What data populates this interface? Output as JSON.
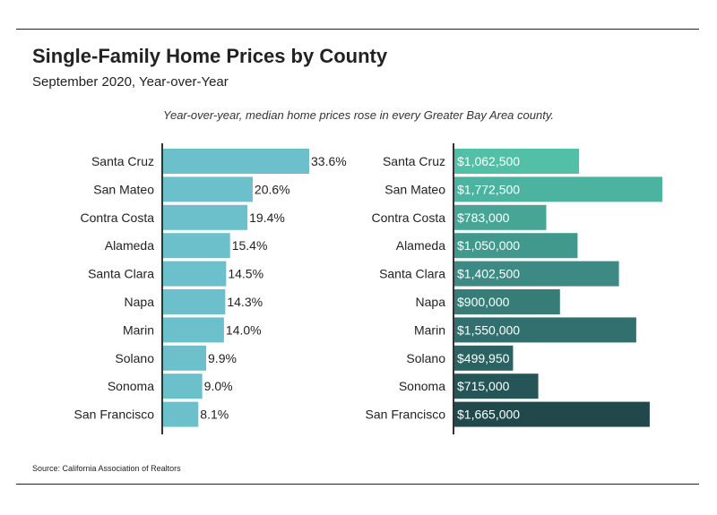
{
  "header": {
    "title": "Single-Family Home Prices by County",
    "subtitle": "September 2020, Year-over-Year",
    "note": "Year-over-year, median home prices rose in every Greater Bay Area county."
  },
  "footer": {
    "source": "Source:  California Association of Realtors"
  },
  "chart_data": [
    {
      "type": "bar",
      "orientation": "horizontal",
      "categories": [
        "Santa Cruz",
        "San Mateo",
        "Contra Costa",
        "Alameda",
        "Santa Clara",
        "Napa",
        "Marin",
        "Solano",
        "Sonoma",
        "San Francisco"
      ],
      "values": [
        33.6,
        20.6,
        19.4,
        15.4,
        14.5,
        14.3,
        14.0,
        9.9,
        9.0,
        8.1
      ],
      "labels": [
        "33.6%",
        "20.6%",
        "19.4%",
        "15.4%",
        "14.5%",
        "14.3%",
        "14.0%",
        "9.9%",
        "9.0%",
        "8.1%"
      ],
      "xlim": [
        0,
        33.6
      ],
      "grid": false,
      "color": "#6cc0cc"
    },
    {
      "type": "bar",
      "orientation": "horizontal",
      "categories": [
        "Santa Cruz",
        "San Mateo",
        "Contra Costa",
        "Alameda",
        "Santa Clara",
        "Napa",
        "Marin",
        "Solano",
        "Sonoma",
        "San Francisco"
      ],
      "values": [
        1062500,
        1772500,
        783000,
        1050000,
        1402500,
        900000,
        1550000,
        499950,
        715000,
        1665000
      ],
      "labels": [
        "$1,062,500",
        "$1,772,500",
        "$783,000",
        "$1,050,000",
        "$1,402,500",
        "$900,000",
        "$1,550,000",
        "$499,950",
        "$715,000",
        "$1,665,000"
      ],
      "xlim": [
        0,
        1772500
      ],
      "grid": false,
      "colors": [
        "#52c0a6",
        "#4cb3a0",
        "#47a596",
        "#41988d",
        "#3c8a83",
        "#367d78",
        "#31706e",
        "#2b6362",
        "#265558",
        "#21494c"
      ]
    }
  ]
}
